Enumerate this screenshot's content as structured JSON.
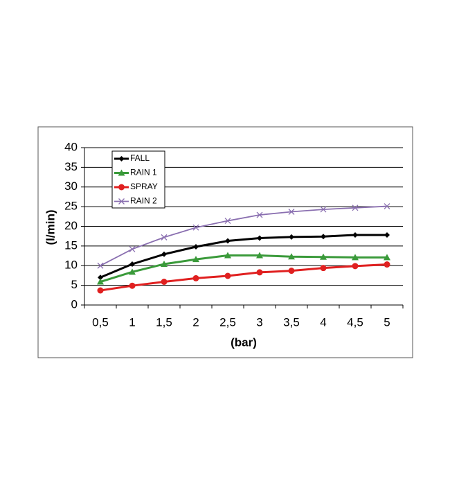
{
  "chart_data": {
    "type": "line",
    "x_label": "(bar)",
    "y_label": "(l/min)",
    "categories": [
      "0,5",
      "1",
      "1,5",
      "2",
      "2,5",
      "3",
      "3,5",
      "4",
      "4,5",
      "5"
    ],
    "series": [
      {
        "name": "FALL",
        "color": "#000000",
        "marker": "diamond",
        "values": [
          7,
          10.4,
          12.9,
          14.8,
          16.3,
          17.0,
          17.3,
          17.4,
          17.8,
          17.8
        ]
      },
      {
        "name": "RAIN 1",
        "color": "#3a9a3a",
        "marker": "triangle",
        "values": [
          5.9,
          8.4,
          10.4,
          11.6,
          12.6,
          12.6,
          12.3,
          12.2,
          12.1,
          12.1
        ]
      },
      {
        "name": "SPRAY",
        "color": "#e02020",
        "marker": "circle",
        "values": [
          3.7,
          4.9,
          5.9,
          6.8,
          7.4,
          8.3,
          8.7,
          9.4,
          9.9,
          10.3
        ]
      },
      {
        "name": "RAIN 2",
        "color": "#8a6fb0",
        "marker": "x",
        "values": [
          10.0,
          14.2,
          17.2,
          19.7,
          21.4,
          22.9,
          23.7,
          24.3,
          24.7,
          25.1
        ]
      }
    ],
    "ylim": [
      0,
      40
    ],
    "yticks": [
      0,
      5,
      10,
      15,
      20,
      25,
      30,
      35,
      40
    ],
    "grid": true,
    "legend": "top-left"
  }
}
